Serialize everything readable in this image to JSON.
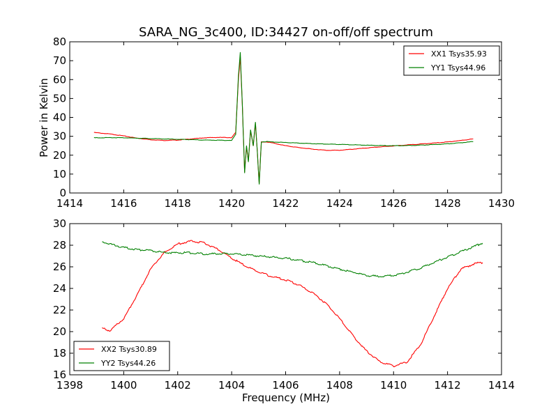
{
  "colors": {
    "xx": "#ff0000",
    "yy": "#008000",
    "axes": "#000000",
    "background": "#ffffff"
  },
  "chart_data": [
    {
      "type": "line",
      "title": "SARA_NG_3c400, ID:34427 on-off/off spectrum",
      "xlabel": "",
      "ylabel": "Power in Kelvin",
      "xlim": [
        1414,
        1430
      ],
      "ylim": [
        0,
        80
      ],
      "xticks": [
        "1414",
        "1416",
        "1418",
        "1420",
        "1422",
        "1424",
        "1426",
        "1428",
        "1430"
      ],
      "yticks": [
        "0",
        "10",
        "20",
        "30",
        "40",
        "50",
        "60",
        "70",
        "80"
      ],
      "grid": false,
      "legend_position": "top-right",
      "series": [
        {
          "name": "XX1 Tsys35.93",
          "color": "#ff0000",
          "x": [
            1414.9,
            1415.5,
            1416.0,
            1416.5,
            1417.0,
            1417.5,
            1418.0,
            1418.5,
            1419.0,
            1419.5,
            1420.0,
            1420.15,
            1420.25,
            1420.32,
            1420.4,
            1420.48,
            1420.55,
            1420.62,
            1420.7,
            1420.8,
            1420.88,
            1420.95,
            1421.02,
            1421.1,
            1421.3,
            1421.5,
            1422.0,
            1422.5,
            1423.0,
            1423.5,
            1424.0,
            1424.5,
            1425.0,
            1425.5,
            1426.0,
            1426.5,
            1427.0,
            1427.5,
            1428.0,
            1428.5,
            1428.95
          ],
          "y": [
            32,
            31.2,
            30.2,
            29.0,
            28.2,
            27.8,
            28.0,
            28.6,
            29.2,
            29.4,
            29.3,
            32,
            60,
            72,
            45,
            11,
            24,
            17,
            33,
            25,
            37,
            22,
            5,
            27,
            27,
            26.5,
            25.0,
            24.0,
            23.2,
            22.6,
            22.6,
            23.2,
            23.8,
            24.4,
            24.9,
            25.4,
            25.9,
            26.4,
            27.0,
            27.8,
            28.6
          ]
        },
        {
          "name": "YY1 Tsys44.96",
          "color": "#008000",
          "x": [
            1414.9,
            1415.5,
            1416.0,
            1416.5,
            1417.0,
            1417.5,
            1418.0,
            1418.5,
            1419.0,
            1419.5,
            1420.0,
            1420.15,
            1420.25,
            1420.32,
            1420.4,
            1420.48,
            1420.55,
            1420.62,
            1420.7,
            1420.8,
            1420.88,
            1420.95,
            1421.02,
            1421.1,
            1421.3,
            1421.5,
            1422.0,
            1422.5,
            1423.0,
            1423.5,
            1424.0,
            1424.5,
            1425.0,
            1425.5,
            1426.0,
            1426.5,
            1427.0,
            1427.5,
            1428.0,
            1428.5,
            1428.95
          ],
          "y": [
            29.2,
            29.3,
            29.2,
            29.0,
            28.8,
            28.6,
            28.4,
            28.2,
            28.0,
            27.9,
            27.8,
            31,
            62,
            74.5,
            45,
            10.5,
            25,
            16.5,
            33.5,
            25,
            37.5,
            22,
            4.5,
            27,
            27.2,
            27.0,
            26.7,
            26.4,
            26.1,
            25.9,
            25.7,
            25.5,
            25.3,
            25.1,
            25.0,
            25.1,
            25.3,
            25.6,
            26.0,
            26.6,
            27.2
          ]
        }
      ]
    },
    {
      "type": "line",
      "title": "",
      "xlabel": "Frequency (MHz)",
      "ylabel": "",
      "xlim": [
        1398,
        1414
      ],
      "ylim": [
        16,
        30
      ],
      "xticks": [
        "1398",
        "1400",
        "1402",
        "1404",
        "1406",
        "1408",
        "1410",
        "1412",
        "1414"
      ],
      "yticks": [
        "16",
        "18",
        "20",
        "22",
        "24",
        "26",
        "28",
        "30"
      ],
      "grid": false,
      "legend_position": "bottom-left",
      "series": [
        {
          "name": "XX2 Tsys30.89",
          "color": "#ff0000",
          "x": [
            1399.2,
            1399.5,
            1400.0,
            1400.5,
            1401.0,
            1401.5,
            1402.0,
            1402.5,
            1403.0,
            1403.5,
            1404.0,
            1404.5,
            1405.0,
            1405.5,
            1406.0,
            1406.5,
            1407.0,
            1407.5,
            1408.0,
            1408.5,
            1409.0,
            1409.5,
            1410.0,
            1410.5,
            1411.0,
            1411.5,
            1412.0,
            1412.5,
            1413.0,
            1413.3
          ],
          "y": [
            20.3,
            20.1,
            21.2,
            23.4,
            25.8,
            27.3,
            28.1,
            28.4,
            28.2,
            27.6,
            26.8,
            26.1,
            25.5,
            25.1,
            24.8,
            24.3,
            23.6,
            22.6,
            21.2,
            19.6,
            18.2,
            17.2,
            16.8,
            17.2,
            18.8,
            21.4,
            24.0,
            25.8,
            26.3,
            26.4
          ]
        },
        {
          "name": "YY2 Tsys44.26",
          "color": "#008000",
          "x": [
            1399.2,
            1399.5,
            1400.0,
            1400.5,
            1401.0,
            1401.5,
            1402.0,
            1402.5,
            1403.0,
            1403.5,
            1404.0,
            1404.5,
            1405.0,
            1405.5,
            1406.0,
            1406.5,
            1407.0,
            1407.5,
            1408.0,
            1408.5,
            1409.0,
            1409.5,
            1410.0,
            1410.5,
            1411.0,
            1411.5,
            1412.0,
            1412.5,
            1413.0,
            1413.3
          ],
          "y": [
            28.3,
            28.1,
            27.8,
            27.6,
            27.5,
            27.3,
            27.3,
            27.3,
            27.2,
            27.2,
            27.2,
            27.1,
            27.0,
            26.9,
            26.8,
            26.6,
            26.4,
            26.1,
            25.8,
            25.5,
            25.2,
            25.1,
            25.2,
            25.5,
            25.9,
            26.4,
            26.9,
            27.4,
            27.9,
            28.2
          ]
        }
      ]
    }
  ]
}
